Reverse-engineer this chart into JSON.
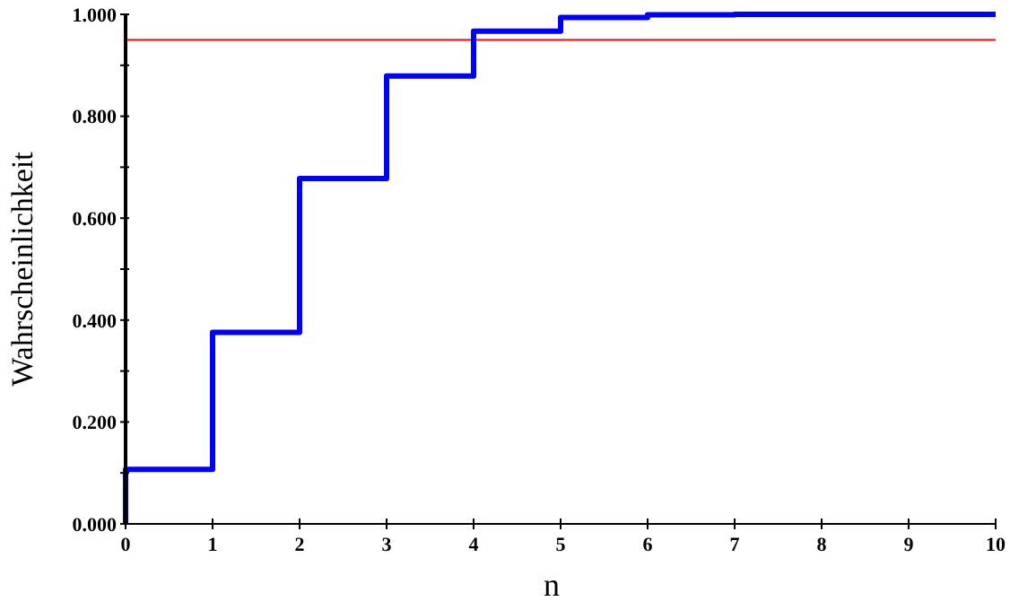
{
  "chart_data": {
    "type": "step",
    "xlabel": "n",
    "ylabel": "Wahrscheinlichkeit",
    "x": [
      0,
      0,
      1,
      2,
      3,
      4,
      5,
      6,
      7,
      8,
      9,
      10
    ],
    "series": [
      {
        "color": "#0000ff",
        "values": [
          0,
          0.107,
          0.376,
          0.678,
          0.879,
          0.967,
          0.994,
          0.999,
          1.0,
          1.0,
          1.0,
          1.0
        ]
      }
    ],
    "xlim": [
      0,
      10
    ],
    "xticks": [
      0,
      1,
      2,
      3,
      4,
      5,
      6,
      7,
      8,
      9,
      10
    ],
    "ylim": [
      0,
      1
    ],
    "yticks": [
      {
        "value": 0,
        "label": "0.000"
      },
      {
        "value": 0.1,
        "label": null
      },
      {
        "value": 0.2,
        "label": "0.200"
      },
      {
        "value": 0.3,
        "label": null
      },
      {
        "value": 0.4,
        "label": "0.400"
      },
      {
        "value": 0.5,
        "label": null
      },
      {
        "value": 0.6,
        "label": "0.600"
      },
      {
        "value": 0.7,
        "label": null
      },
      {
        "value": 0.8,
        "label": "0.800"
      },
      {
        "value": 0.9,
        "label": null
      },
      {
        "value": 1,
        "label": "1.000"
      }
    ],
    "ref_lines": [
      {
        "axis": "y",
        "value": 0.95,
        "color": "#ff0000"
      }
    ],
    "marker": "none",
    "line_style": "solid"
  }
}
